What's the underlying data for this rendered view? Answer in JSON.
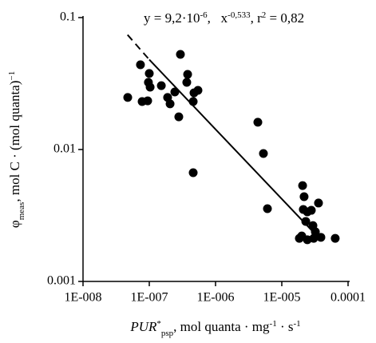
{
  "chart_data": {
    "type": "scatter",
    "log_x": true,
    "log_y": true,
    "color": "#000000",
    "x": [
      4.73e-08,
      7.36e-08,
      7.8e-08,
      9.46e-08,
      9.7e-08,
      1e-07,
      1.03e-07,
      1.52e-07,
      1.89e-07,
      2.06e-07,
      2.43e-07,
      2.95e-07,
      2.79e-07,
      3.68e-07,
      3.79e-07,
      4.6e-07,
      4.73e-07,
      5.43e-07,
      4.6e-07,
      4.35e-06,
      5.28e-06,
      6.07e-06,
      2e-05,
      2.06e-05,
      2.17e-05,
      2.11e-05,
      2.3e-05,
      2.43e-05,
      2.79e-05,
      2.95e-05,
      3.21e-05,
      3.58e-05,
      3.03e-05,
      3.89e-05,
      6.4e-05,
      1.84e-05,
      2.43e-05
    ],
    "values": [
      0.0248,
      0.0439,
      0.0231,
      0.0234,
      0.0323,
      0.0377,
      0.0297,
      0.0305,
      0.0248,
      0.0222,
      0.0273,
      0.0526,
      0.0177,
      0.0323,
      0.0371,
      0.0231,
      0.0269,
      0.0281,
      0.00667,
      0.0161,
      0.00933,
      0.00356,
      0.00221,
      0.00533,
      0.00439,
      0.00351,
      0.00285,
      0.00207,
      0.00346,
      0.00265,
      0.00238,
      0.00393,
      0.00212,
      0.00216,
      0.00212,
      0.00212,
      0.00337
    ],
    "fit": {
      "x": [
        4.7e-08,
        1e-07,
        4e-05
      ],
      "y": [
        0.074,
        0.048,
        0.00203
      ]
    },
    "xlim": [
      1e-08,
      0.0001
    ],
    "ylim": [
      0.001,
      0.1
    ],
    "xticks": [
      {
        "value": 1e-08,
        "label": "1E-008"
      },
      {
        "value": 1e-07,
        "label": "1E-007"
      },
      {
        "value": 1e-06,
        "label": "1E-006"
      },
      {
        "value": 1e-05,
        "label": "1E-005"
      },
      {
        "value": 0.0001,
        "label": "0.0001"
      }
    ],
    "yticks": [
      0.001,
      0.01,
      0.1
    ],
    "annotation": {
      "lead": "y = 9,2·10",
      "coef_exp": "-6",
      "mid": ",   x",
      "x_exp": "-0,533",
      "r": ", r",
      "r_exp": "2",
      "r_val": " = 0,82"
    },
    "xlabel": {
      "main": "PUR",
      "star": "*",
      "sub": "psp",
      "rest": ", mol quanta · mg",
      "exp1": "-1",
      "rest2": " · s",
      "exp2": "-1"
    },
    "ylabel": {
      "main": "φ",
      "sub": "meas",
      "rest": ", mol C · (mol quanta)",
      "exp": "−1"
    }
  }
}
